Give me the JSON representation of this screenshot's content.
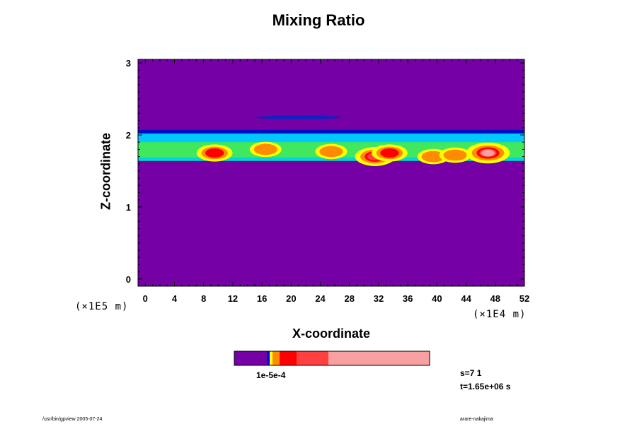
{
  "chart_data": {
    "type": "heatmap",
    "title": "Mixing Ratio",
    "xlabel": "X-coordinate",
    "ylabel": "Z-coordinate",
    "x_scale_note": "(×1E4 m)",
    "y_scale_note": "(×1E5 m)",
    "xlim": [
      -1,
      52
    ],
    "ylim": [
      -0.1,
      3.05
    ],
    "x_ticks": [
      0,
      4,
      8,
      12,
      16,
      20,
      24,
      28,
      32,
      36,
      40,
      44,
      48,
      52
    ],
    "y_ticks": [
      0,
      1,
      2,
      3
    ],
    "background_color": "#7400a6",
    "colorbar": {
      "colors": [
        "#7400a6",
        "#0000ff",
        "#ffff00",
        "#ff8c00",
        "#ff0000",
        "#ff4040",
        "#f8a0a0"
      ],
      "label": "1e-5e-4"
    },
    "layer": {
      "bottom": 1.65,
      "top": 2.05,
      "faint_band": [
        2.22,
        2.27
      ]
    },
    "hotspots": [
      {
        "x": 9.5,
        "z": 1.75,
        "level": 5
      },
      {
        "x": 16.5,
        "z": 1.8,
        "level": 4
      },
      {
        "x": 25.5,
        "z": 1.77,
        "level": 4
      },
      {
        "x": 31.5,
        "z": 1.7,
        "level": 6
      },
      {
        "x": 33.5,
        "z": 1.75,
        "level": 5
      },
      {
        "x": 39.5,
        "z": 1.7,
        "level": 4
      },
      {
        "x": 42.5,
        "z": 1.72,
        "level": 4
      },
      {
        "x": 47.0,
        "z": 1.75,
        "level": 7
      }
    ]
  },
  "info": {
    "step": "s=7 1",
    "time": "t=1.65e+06 s"
  },
  "footer": {
    "left": "/usr/bin/gpview 2005-07-24",
    "right": "arare-nakajima"
  }
}
